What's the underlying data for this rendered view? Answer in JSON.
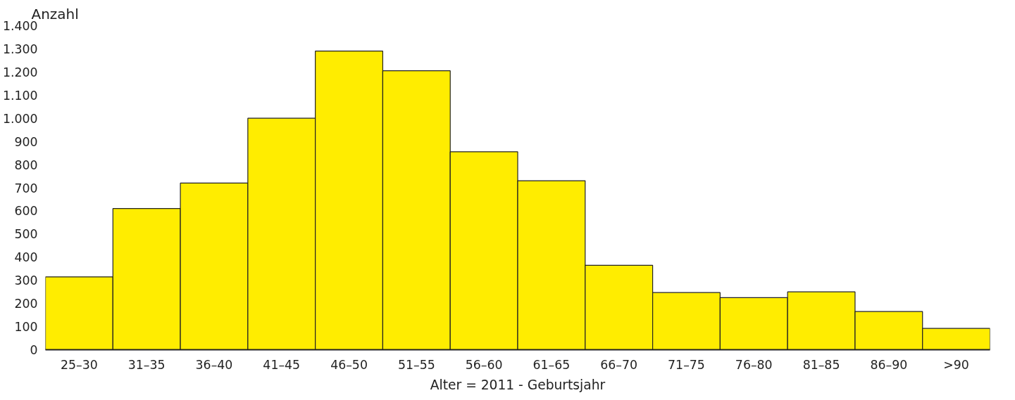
{
  "chart_data": {
    "type": "bar",
    "ylabel": "Anzahl",
    "xlabel": "Alter = 2011 - Geburtsjahr",
    "categories": [
      "25–30",
      "31–35",
      "36–40",
      "41–45",
      "46–50",
      "51–55",
      "56–60",
      "61–65",
      "66–70",
      "71–75",
      "76–80",
      "81–85",
      "86–90",
      ">90"
    ],
    "values": [
      315,
      610,
      720,
      1000,
      1290,
      1205,
      855,
      730,
      365,
      247,
      225,
      250,
      165,
      92
    ],
    "color": "#ffed00",
    "ylim": [
      0,
      1400
    ],
    "yticks": [
      0,
      100,
      200,
      300,
      400,
      500,
      600,
      700,
      800,
      900,
      {
        "value": 1000,
        "label": "1.000"
      },
      {
        "value": 1100,
        "label": "1.100"
      },
      {
        "value": 1200,
        "label": "1.200"
      },
      {
        "value": 1300,
        "label": "1.300"
      },
      {
        "value": 1400,
        "label": "1.400"
      }
    ],
    "grid": false
  }
}
